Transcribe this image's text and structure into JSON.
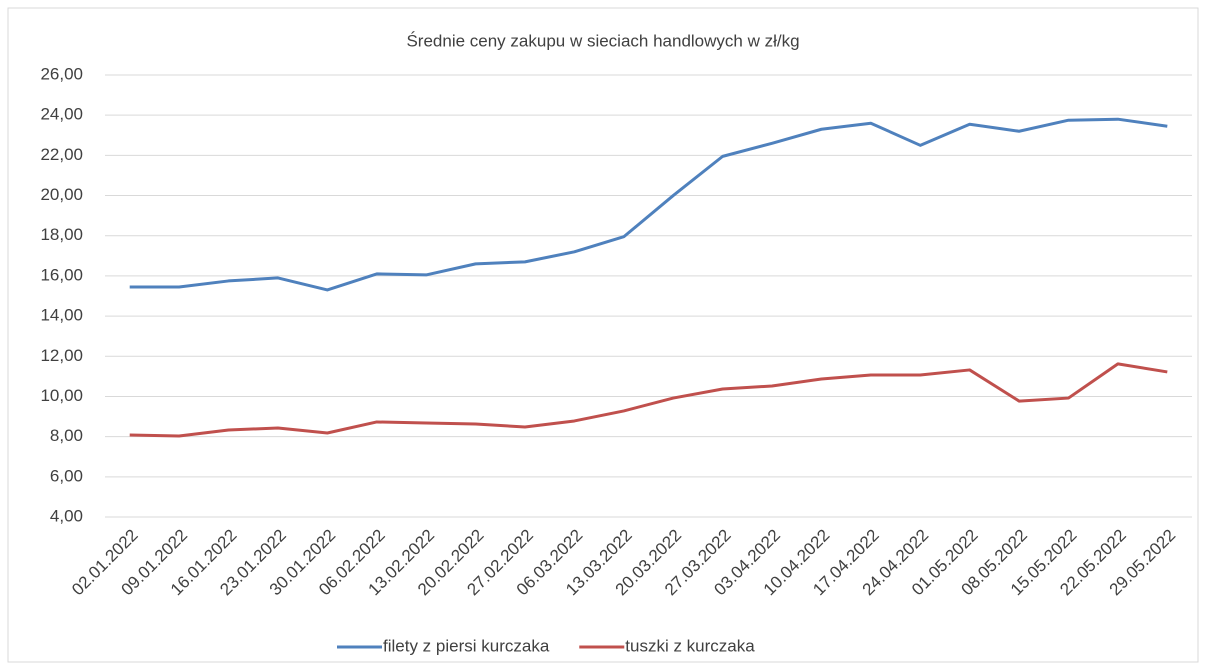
{
  "chart_data": {
    "type": "line",
    "title": "Średnie ceny zakupu w sieciach handlowych w zł/kg",
    "categories": [
      "02.01.2022",
      "09.01.2022",
      "16.01.2022",
      "23.01.2022",
      "30.01.2022",
      "06.02.2022",
      "13.02.2022",
      "20.02.2022",
      "27.02.2022",
      "06.03.2022",
      "13.03.2022",
      "20.03.2022",
      "27.03.2022",
      "03.04.2022",
      "10.04.2022",
      "17.04.2022",
      "24.04.2022",
      "01.05.2022",
      "08.05.2022",
      "15.05.2022",
      "22.05.2022",
      "29.05.2022"
    ],
    "series": [
      {
        "name": "filety z piersi kurczaka",
        "color": "#4f81bd",
        "values": [
          15.45,
          15.45,
          15.75,
          15.9,
          15.3,
          16.1,
          16.05,
          16.6,
          16.7,
          17.2,
          17.95,
          20.0,
          21.95,
          22.6,
          23.3,
          23.6,
          22.5,
          23.55,
          23.2,
          23.75,
          23.8,
          23.45
        ]
      },
      {
        "name": "tuszki  z kurczaka",
        "color": "#c0504d",
        "values": [
          8.08,
          8.03,
          8.33,
          8.43,
          8.18,
          8.73,
          8.68,
          8.63,
          8.48,
          8.78,
          9.28,
          9.92,
          10.37,
          10.52,
          10.87,
          11.07,
          11.07,
          11.32,
          9.77,
          9.92,
          11.62,
          11.22
        ]
      }
    ],
    "ylim": [
      4,
      26
    ],
    "yticks": [
      {
        "value": 4,
        "label": "4,00"
      },
      {
        "value": 6,
        "label": "6,00"
      },
      {
        "value": 8,
        "label": "8,00"
      },
      {
        "value": 10,
        "label": "10,00"
      },
      {
        "value": 12,
        "label": "12,00"
      },
      {
        "value": 14,
        "label": "14,00"
      },
      {
        "value": 16,
        "label": "16,00"
      },
      {
        "value": 18,
        "label": "18,00"
      },
      {
        "value": 20,
        "label": "20,00"
      },
      {
        "value": 22,
        "label": "22,00"
      },
      {
        "value": 24,
        "label": "24,00"
      },
      {
        "value": 26,
        "label": "26,00"
      }
    ],
    "grid": true,
    "legend": "bottom"
  }
}
